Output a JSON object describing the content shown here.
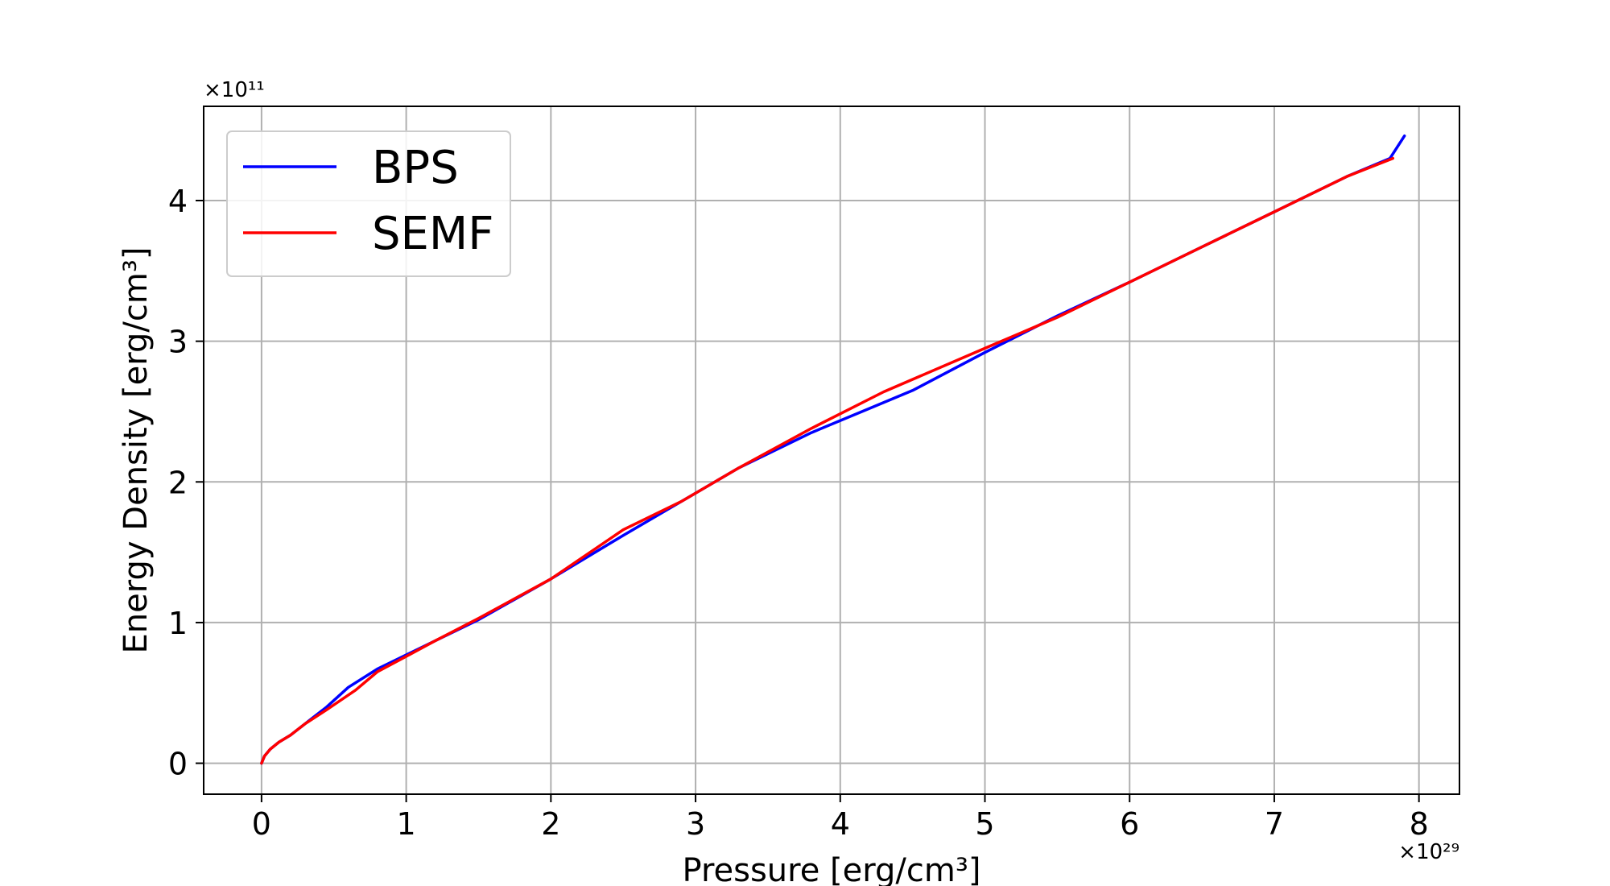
{
  "chart_data": {
    "type": "line",
    "xlabel": "Pressure [erg/cm³]",
    "ylabel": "Energy Density [erg/cm³]",
    "x_offset_label": "×10²⁹",
    "y_offset_label": "×10¹¹",
    "xlim": [
      -0.4,
      8.28
    ],
    "ylim": [
      -0.22,
      4.67
    ],
    "xticks": [
      0,
      1,
      2,
      3,
      4,
      5,
      6,
      7,
      8
    ],
    "yticks": [
      0,
      1,
      2,
      3,
      4
    ],
    "grid": true,
    "legend_position": "top-left",
    "series": [
      {
        "name": "BPS",
        "color": "#0000ff",
        "x": [
          0,
          0.02,
          0.06,
          0.12,
          0.2,
          0.3,
          0.45,
          0.6,
          0.8,
          1.0,
          1.2,
          1.5,
          2.0,
          2.5,
          2.9,
          3.3,
          3.8,
          4.5,
          5.0,
          5.5,
          6.0,
          6.5,
          7.0,
          7.5,
          7.8,
          7.9
        ],
        "y": [
          0,
          0.05,
          0.1,
          0.15,
          0.2,
          0.28,
          0.4,
          0.54,
          0.67,
          0.77,
          0.87,
          1.02,
          1.31,
          1.62,
          1.86,
          2.1,
          2.35,
          2.65,
          2.92,
          3.18,
          3.42,
          3.67,
          3.92,
          4.17,
          4.3,
          4.46
        ]
      },
      {
        "name": "SEMF",
        "color": "#ff0000",
        "x": [
          0,
          0.02,
          0.06,
          0.12,
          0.2,
          0.3,
          0.45,
          0.65,
          0.8,
          1.0,
          1.2,
          1.5,
          2.0,
          2.5,
          2.9,
          3.3,
          3.8,
          4.3,
          5.0,
          5.5,
          6.0,
          6.5,
          7.0,
          7.5,
          7.82
        ],
        "y": [
          0,
          0.05,
          0.1,
          0.15,
          0.2,
          0.28,
          0.38,
          0.52,
          0.65,
          0.76,
          0.87,
          1.03,
          1.31,
          1.66,
          1.86,
          2.1,
          2.38,
          2.64,
          2.95,
          3.17,
          3.42,
          3.67,
          3.92,
          4.17,
          4.3
        ]
      }
    ]
  }
}
